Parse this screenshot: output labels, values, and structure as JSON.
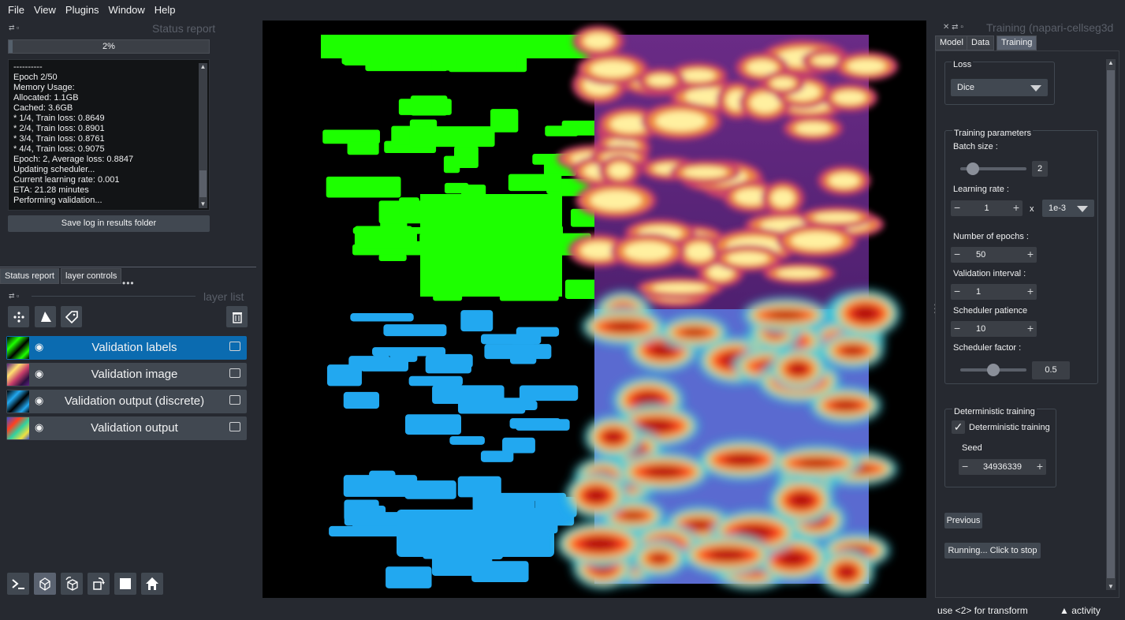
{
  "menu": [
    "File",
    "View",
    "Plugins",
    "Window",
    "Help"
  ],
  "status_report": {
    "title": "Status report",
    "progress_text": "2%",
    "progress_fraction": 0.02,
    "log_lines": [
      "----------",
      "Epoch 2/50",
      "Memory Usage:",
      "Allocated: 1.1GB",
      "Cached: 3.6GB",
      "* 1/4, Train loss: 0.8649",
      "* 2/4, Train loss: 0.8901",
      "* 3/4, Train loss: 0.8761",
      "* 4/4, Train loss: 0.9075",
      "Epoch: 2, Average loss: 0.8847",
      "Updating scheduler...",
      "Current learning rate: 0.001",
      "ETA: 21.28 minutes",
      "Performing validation..."
    ],
    "save_log_label": "Save log in results folder"
  },
  "left_tabs": [
    "Status report",
    "layer controls"
  ],
  "layer_list": {
    "title": "layer list",
    "layers": [
      {
        "name": "Validation labels",
        "selected": true
      },
      {
        "name": "Validation image",
        "selected": false
      },
      {
        "name": "Validation output (discrete)",
        "selected": false
      },
      {
        "name": "Validation output",
        "selected": false
      }
    ]
  },
  "training_panel": {
    "title": "Training (napari-cellseg3d",
    "tabs": [
      "Model",
      "Data",
      "Training"
    ],
    "active_tab": "Training",
    "loss": {
      "group_title": "Loss",
      "value": "Dice"
    },
    "params": {
      "group_title": "Training parameters",
      "batch_size_label": "Batch size :",
      "batch_size_value": "2",
      "learning_rate_label": "Learning rate :",
      "lr_mantissa": "1",
      "lr_x": "x",
      "lr_exp": "1e-3",
      "epochs_label": "Number of epochs :",
      "epochs_value": "50",
      "val_interval_label": "Validation interval :",
      "val_interval_value": "1",
      "patience_label": "Scheduler patience",
      "patience_value": "10",
      "factor_label": "Scheduler factor :",
      "factor_value": "0.5"
    },
    "deterministic": {
      "group_title": "Deterministic training",
      "checkbox_label": "Deterministic training",
      "checked": true,
      "seed_label": "Seed",
      "seed_value": "34936339"
    },
    "previous_label": "Previous",
    "running_label": "Running... Click to stop"
  },
  "statusbar": {
    "hint": "use <2> for transform",
    "activity": "activity"
  }
}
